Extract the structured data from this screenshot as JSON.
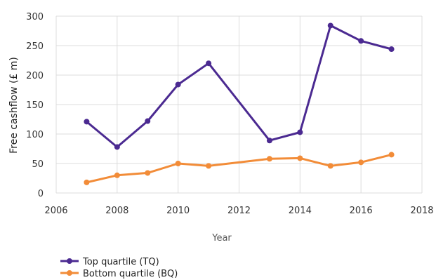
{
  "chart_data": {
    "type": "line",
    "title": "",
    "xlabel": "Year",
    "ylabel": "Free cashflow (£ m)",
    "xlim": [
      2006,
      2018
    ],
    "ylim": [
      0,
      300
    ],
    "xticks": [
      2006,
      2008,
      2010,
      2012,
      2014,
      2016,
      2018
    ],
    "yticks": [
      0,
      50,
      100,
      150,
      200,
      250,
      300
    ],
    "grid": true,
    "legend_position": "bottom-left",
    "series": [
      {
        "name": "Top quartile (TQ)",
        "color": "#4b2a91",
        "x": [
          2007,
          2008,
          2009,
          2010,
          2011,
          2013,
          2014,
          2015,
          2016,
          2017
        ],
        "y": [
          121,
          78,
          122,
          184,
          220,
          89,
          103,
          284,
          258,
          244
        ]
      },
      {
        "name": "Bottom quartile (BQ)",
        "color": "#f28c38",
        "x": [
          2007,
          2008,
          2009,
          2010,
          2011,
          2013,
          2014,
          2015,
          2016,
          2017
        ],
        "y": [
          18,
          30,
          34,
          50,
          46,
          58,
          59,
          46,
          52,
          65
        ]
      }
    ]
  }
}
